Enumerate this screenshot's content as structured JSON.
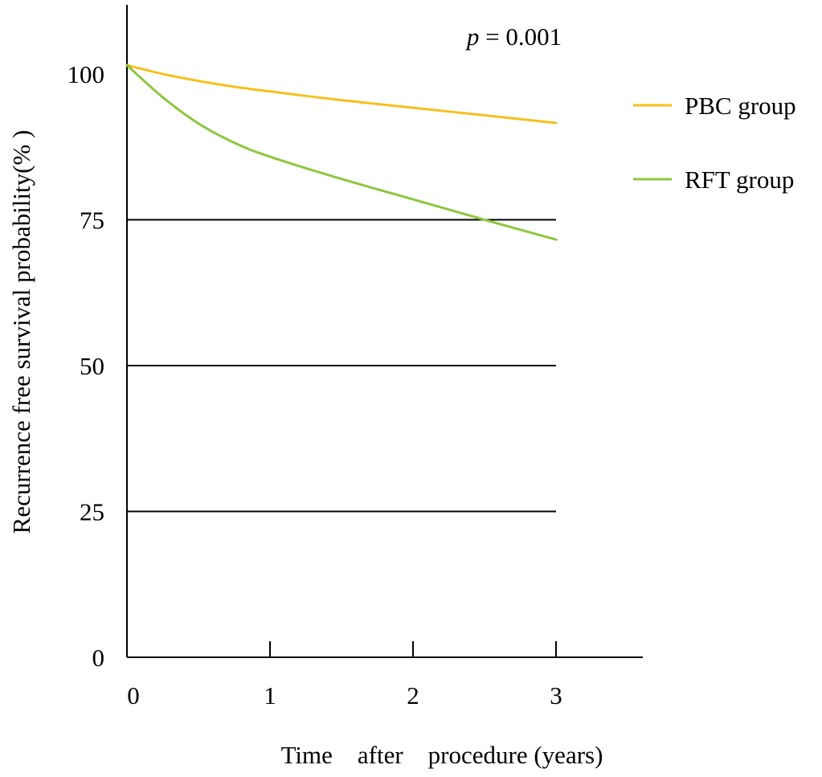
{
  "chart_data": {
    "type": "line",
    "title": "",
    "xlabel": "Time    after    procedure (years)",
    "ylabel": "Recurrence free survival probability(% )",
    "annotation": {
      "italic": "p",
      "text": " = 0.001"
    },
    "xlim": [
      0,
      3.6
    ],
    "ylim": [
      0,
      110
    ],
    "x_ticks": [
      0,
      1,
      2,
      3
    ],
    "x_tick_labels": [
      "0",
      "1",
      "2",
      "3"
    ],
    "y_ticks": [
      0,
      25,
      50,
      75,
      100
    ],
    "y_tick_labels": [
      "0",
      "25",
      "50",
      "75",
      "100"
    ],
    "grid": {
      "horizontal_at": [
        25,
        50,
        75
      ],
      "vertical": false
    },
    "legend_position": "right",
    "series": [
      {
        "name": "PBC group",
        "color": "#F5C01E",
        "x": [
          0,
          0.25,
          0.5,
          0.75,
          1,
          1.5,
          2,
          2.5,
          3
        ],
        "y": [
          101.5,
          100.0,
          98.8,
          97.8,
          97.0,
          95.5,
          94.2,
          92.9,
          91.6
        ]
      },
      {
        "name": "RFT group",
        "color": "#8DC63F",
        "x": [
          0,
          0.25,
          0.5,
          0.75,
          1,
          1.5,
          2,
          2.5,
          3
        ],
        "y": [
          101.5,
          96.0,
          91.5,
          88.2,
          85.8,
          82.0,
          78.5,
          75.0,
          71.6
        ]
      }
    ]
  }
}
